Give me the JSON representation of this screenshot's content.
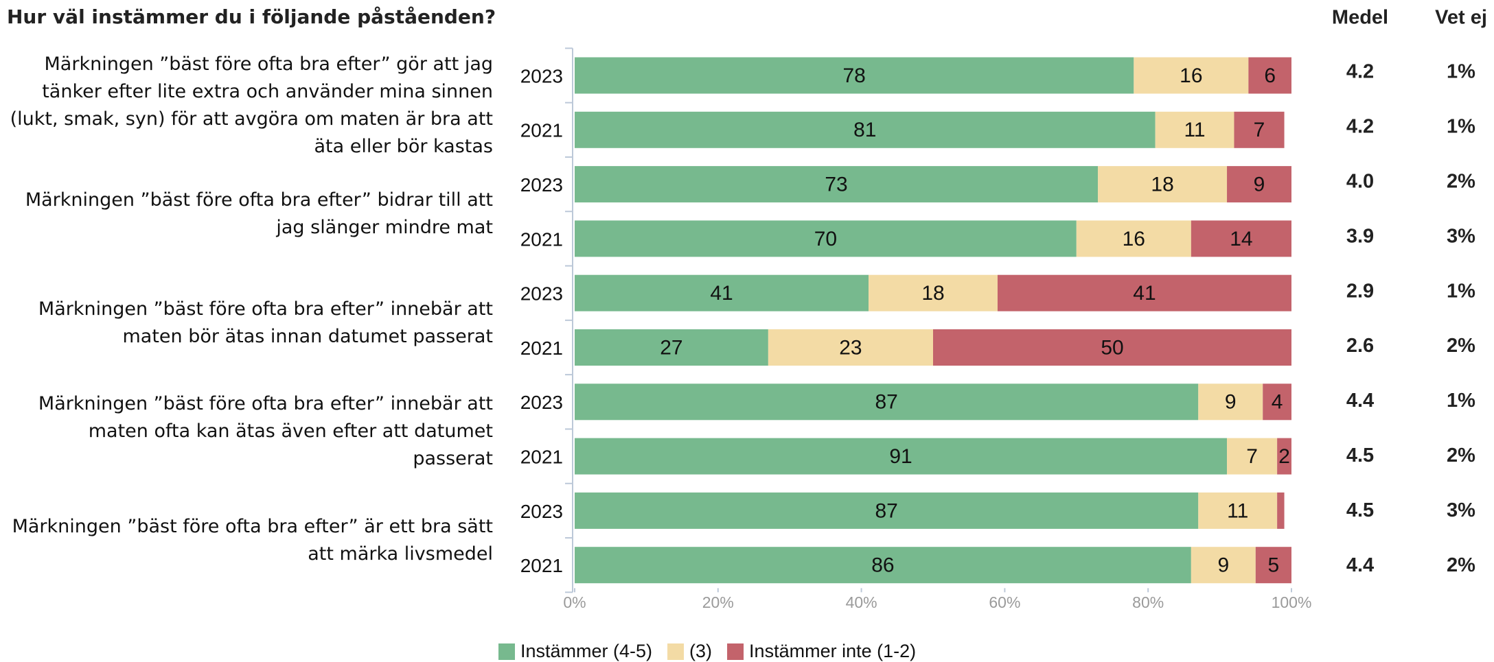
{
  "chart_data": {
    "type": "stacked_bar",
    "orientation": "horizontal",
    "title": "Hur väl instämmer du i följande påståenden?",
    "groups": [
      "Märkningen ”bäst före ofta bra efter” gör att jag tänker efter lite extra och använder mina sinnen (lukt, smak, syn) för att avgöra om maten är bra att äta eller bör kastas",
      "Märkningen ”bäst före ofta bra efter” bidrar till att jag slänger mindre mat",
      "Märkningen ”bäst före ofta bra efter” innebär att maten bör ätas innan datumet passerat",
      "Märkningen ”bäst före ofta bra efter” innebär att maten ofta kan ätas även efter att datumet passerat",
      "Märkningen ”bäst före ofta bra efter” är ett bra sätt att märka livsmedel"
    ],
    "categories": [
      "2023",
      "2021",
      "2023",
      "2021",
      "2023",
      "2021",
      "2023",
      "2021",
      "2023",
      "2021"
    ],
    "series": [
      {
        "name": "Instämmer (4-5)",
        "color": "#77b98e",
        "values": [
          78,
          81,
          73,
          70,
          41,
          27,
          87,
          91,
          87,
          86
        ]
      },
      {
        "name": "(3)",
        "color": "#f3dba5",
        "values": [
          16,
          11,
          18,
          16,
          18,
          23,
          9,
          7,
          11,
          9
        ]
      },
      {
        "name": "Instämmer inte (1-2)",
        "color": "#c3636b",
        "values": [
          6,
          7,
          9,
          14,
          41,
          50,
          4,
          2,
          1,
          5
        ]
      }
    ],
    "xlim": [
      0,
      100
    ],
    "xticks": [
      {
        "value": 0,
        "label": "0%"
      },
      {
        "value": 20,
        "label": "20%"
      },
      {
        "value": 40,
        "label": "40%"
      },
      {
        "value": 60,
        "label": "60%"
      },
      {
        "value": 80,
        "label": "80%"
      },
      {
        "value": 100,
        "label": "100%"
      }
    ],
    "columns": [
      {
        "title": "Medel",
        "values": [
          4.2,
          4.2,
          4.0,
          3.9,
          2.9,
          2.6,
          4.4,
          4.5,
          4.5,
          4.4
        ],
        "value_labels": [
          "4.2",
          "4.2",
          "4.0",
          "3.9",
          "2.9",
          "2.6",
          "4.4",
          "4.5",
          "4.5",
          "4.4"
        ]
      },
      {
        "title": "Vet ej",
        "values": [
          1,
          1,
          2,
          3,
          1,
          2,
          1,
          2,
          3,
          2
        ],
        "value_labels": [
          "1%",
          "1%",
          "2%",
          "3%",
          "1%",
          "2%",
          "1%",
          "2%",
          "3%",
          "2%"
        ]
      }
    ],
    "legend": "bottom"
  }
}
